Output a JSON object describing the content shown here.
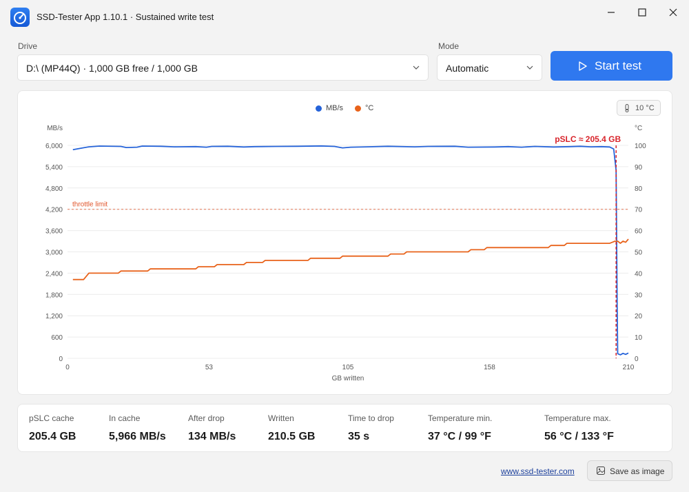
{
  "window": {
    "title": "SSD-Tester App 1.10.1 · Sustained write test",
    "icon": "speedometer-icon"
  },
  "form": {
    "drive_label": "Drive",
    "drive_value": "D:\\ (MP44Q)  ·  1,000 GB free / 1,000 GB",
    "mode_label": "Mode",
    "mode_value": "Automatic",
    "start_label": "Start test"
  },
  "temp_badge": "10 °C",
  "chart_data": {
    "type": "line",
    "xlabel": "GB written",
    "x_ticks": [
      0,
      53,
      105,
      158,
      210
    ],
    "xlim": [
      0,
      210
    ],
    "y_left_label": "MB/s",
    "y_left_ticks": [
      0,
      600,
      1200,
      1800,
      2400,
      3000,
      3600,
      4200,
      4800,
      5400,
      6000
    ],
    "y_left_lim": [
      0,
      6000
    ],
    "y_right_label": "°C",
    "y_right_ticks": [
      0,
      10,
      20,
      30,
      40,
      50,
      60,
      70,
      80,
      90,
      100
    ],
    "y_right_lim": [
      0,
      100
    ],
    "legend": [
      {
        "name": "MB/s",
        "color": "#2563d9"
      },
      {
        "name": "°C",
        "color": "#e8621a"
      }
    ],
    "legend_position": "top-center",
    "threshold": {
      "label": "throttle limit",
      "value": 70,
      "axis": "right",
      "color": "#e0542a"
    },
    "annotation": {
      "label": "pSLC ≈ 205.4 GB",
      "x": 205.4,
      "color": "#d8232a"
    },
    "series": [
      {
        "name": "MB/s",
        "axis": "left",
        "color": "#2563d9",
        "points": [
          [
            2,
            5880
          ],
          [
            5,
            5920
          ],
          [
            8,
            5960
          ],
          [
            12,
            5980
          ],
          [
            20,
            5970
          ],
          [
            22,
            5940
          ],
          [
            26,
            5950
          ],
          [
            28,
            5980
          ],
          [
            35,
            5975
          ],
          [
            40,
            5960
          ],
          [
            48,
            5965
          ],
          [
            52,
            5950
          ],
          [
            54,
            5970
          ],
          [
            60,
            5975
          ],
          [
            66,
            5955
          ],
          [
            70,
            5965
          ],
          [
            78,
            5970
          ],
          [
            86,
            5975
          ],
          [
            95,
            5985
          ],
          [
            100,
            5970
          ],
          [
            103,
            5930
          ],
          [
            106,
            5950
          ],
          [
            112,
            5960
          ],
          [
            120,
            5975
          ],
          [
            130,
            5960
          ],
          [
            135,
            5970
          ],
          [
            145,
            5975
          ],
          [
            150,
            5950
          ],
          [
            160,
            5955
          ],
          [
            165,
            5965
          ],
          [
            170,
            5950
          ],
          [
            175,
            5970
          ],
          [
            182,
            5955
          ],
          [
            188,
            5965
          ],
          [
            192,
            5975
          ],
          [
            196,
            5960
          ],
          [
            200,
            5965
          ],
          [
            203,
            5955
          ],
          [
            204.5,
            5900
          ],
          [
            205.4,
            5300
          ],
          [
            205.8,
            1500
          ],
          [
            206,
            130
          ],
          [
            207,
            100
          ],
          [
            208,
            140
          ],
          [
            209,
            110
          ],
          [
            210,
            150
          ]
        ]
      },
      {
        "name": "°C",
        "axis": "right",
        "color": "#e8621a",
        "points": [
          [
            2,
            37
          ],
          [
            6,
            37
          ],
          [
            8,
            40
          ],
          [
            19,
            40
          ],
          [
            20,
            41
          ],
          [
            30,
            41
          ],
          [
            31,
            42
          ],
          [
            48,
            42
          ],
          [
            49,
            43
          ],
          [
            55,
            43
          ],
          [
            56,
            44
          ],
          [
            66,
            44
          ],
          [
            67,
            45
          ],
          [
            73,
            45
          ],
          [
            74,
            46
          ],
          [
            90,
            46
          ],
          [
            91,
            47
          ],
          [
            102,
            47
          ],
          [
            103,
            48
          ],
          [
            120,
            48
          ],
          [
            121,
            49
          ],
          [
            126,
            49
          ],
          [
            127,
            50
          ],
          [
            150,
            50
          ],
          [
            151,
            51
          ],
          [
            156,
            51
          ],
          [
            157,
            52
          ],
          [
            180,
            52
          ],
          [
            181,
            53
          ],
          [
            186,
            53
          ],
          [
            187,
            54
          ],
          [
            203,
            54
          ],
          [
            205,
            55
          ],
          [
            206,
            55
          ],
          [
            207,
            54
          ],
          [
            208,
            55
          ],
          [
            209,
            54.5
          ],
          [
            210,
            56
          ]
        ]
      },
      {
        "name": "pSLC marker",
        "axis": "left",
        "color": "#d8232a",
        "points": [
          [
            205.4,
            6000
          ],
          [
            205.4,
            0
          ]
        ]
      }
    ]
  },
  "stats": [
    {
      "label": "pSLC cache",
      "value": "205.4 GB"
    },
    {
      "label": "In cache",
      "value": "5,966 MB/s"
    },
    {
      "label": "After drop",
      "value": "134 MB/s"
    },
    {
      "label": "Written",
      "value": "210.5 GB"
    },
    {
      "label": "Time to drop",
      "value": "35 s"
    },
    {
      "label": "Temperature min.",
      "value": "37 °C / 99 °F"
    },
    {
      "label": "Temperature max.",
      "value": "56 °C / 133 °F"
    }
  ],
  "footer": {
    "link": "www.ssd-tester.com",
    "save_label": "Save as image"
  }
}
